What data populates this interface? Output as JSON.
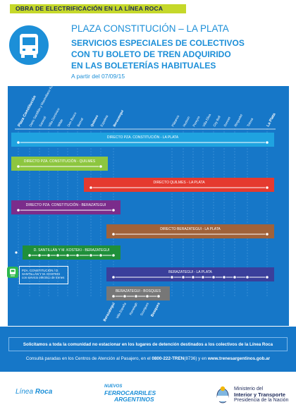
{
  "banner": "OBRA DE ELECTRIFICACIÓN EN LA LÍNEA ROCA",
  "title": "PLAZA CONSTITUCIÓN – LA PLATA",
  "headline": [
    "SERVICIOS ESPECIALES DE COLECTIVOS",
    "CON TU BOLETO DE TREN ADQUIRIDO",
    "EN LAS BOLETERÍAS HABITUALES"
  ],
  "subtitle": "A partir del 07/09/15",
  "stations_top": [
    "Plaza Constitución",
    "Dario Santillán y Maximiliano Kosteki",
    "Sarandí",
    "Villa Domínico",
    "Wilde",
    "Don Bosco",
    "Bernal",
    "Quilmes",
    "Ezpeleta",
    "Berazategui",
    "Plátanos",
    "Hudson",
    "Pereyra",
    "Villa Elisa",
    "City Bell",
    "Gonnet",
    "Ringuelet",
    "Tolosa",
    "La Plata"
  ],
  "stations_bottom": [
    "Berazategui",
    "Villa España",
    "Ranelagh",
    "Sourigues",
    "Bosques"
  ],
  "routes": [
    {
      "label": "DIRECTO PZA. CONSTITUCIÓN - LA PLATA",
      "color": "#1fa3e0"
    },
    {
      "label": "DIRECTO PZA. CONSTITUCIÓN - QUILMES",
      "color": "#8dc63f"
    },
    {
      "label": "DIRECTO QUILMES - LA PLATA",
      "color": "#e53a2f"
    },
    {
      "label": "DIRECTO PZA. CONSTITUCIÓN - BERAZATEGUI",
      "color": "#7b2c8b"
    },
    {
      "label": "DIRECTO BERAZATEGUI - LA PLATA",
      "color": "#a0623a"
    },
    {
      "label": "D. SANTILLÁN Y M. KOSTEKI - BERAZATEGUI",
      "color": "#1f8f3a"
    },
    {
      "label": "BERAZATEGUI - LA PLATA",
      "color": "#3a3f9b"
    },
    {
      "label": "BERAZATEGUI - BOSQUES",
      "color": "#777777"
    }
  ],
  "tren_note": "PZA. CONSTITUCIÓN / D. SANTILLÁN Y M. KOSTEKI con servicio eléctrico de trenes",
  "notice": "Solicitamos a toda la comunidad no estacionar en los lugares de detención destinados a los colectivos de la Línea Roca",
  "contact_pre": "Consultá paradas en los Centros de Atención al Pasajero, en el ",
  "contact_phone": "0800-222-TREN",
  "contact_mid": "(8736) y en ",
  "contact_web": "www.trenesargentinos.gob.ar",
  "footer": {
    "roca_a": "Línea",
    "roca_b": "Roca",
    "ffcc": [
      "NUEVOS",
      "FERROCARRILES",
      "ARGENTINOS"
    ],
    "min1": "Ministerio del",
    "min2": "Interior y Transporte",
    "min3": "Presidencia de la Nación"
  },
  "colors": {
    "brand_blue": "#1c8fd8",
    "panel_blue": "#1677c8",
    "banner_green": "#c5d82a"
  }
}
